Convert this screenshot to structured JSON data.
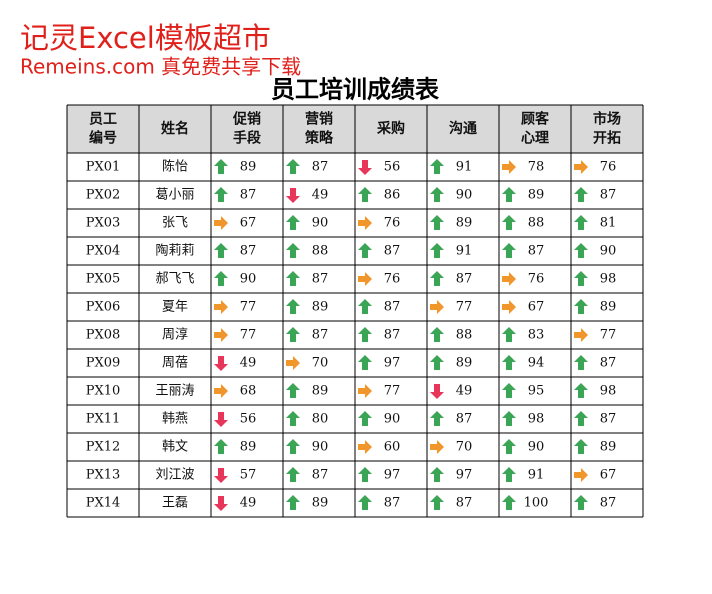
{
  "watermark": {
    "line1": "记灵Excel模板超市",
    "line2": "Remeins.com 真免费共享下载"
  },
  "table": {
    "title": "员工培训成绩表",
    "headers": [
      [
        "员工",
        "编号"
      ],
      [
        "姓名"
      ],
      [
        "促销",
        "手段"
      ],
      [
        "营销",
        "策略"
      ],
      [
        "采购"
      ],
      [
        "沟通"
      ],
      [
        "顾客",
        "心理"
      ],
      [
        "市场",
        "开拓"
      ]
    ],
    "rows": [
      [
        "PX01",
        "陈怡",
        89,
        87,
        56,
        91,
        78,
        76
      ],
      [
        "PX02",
        "葛小丽",
        87,
        49,
        86,
        90,
        89,
        87
      ],
      [
        "PX03",
        "张飞",
        67,
        90,
        76,
        89,
        88,
        81
      ],
      [
        "PX04",
        "陶莉莉",
        87,
        88,
        87,
        91,
        87,
        90
      ],
      [
        "PX05",
        "郝飞飞",
        90,
        87,
        76,
        87,
        76,
        98
      ],
      [
        "PX06",
        "夏年",
        77,
        89,
        87,
        77,
        67,
        89
      ],
      [
        "PX08",
        "周淳",
        77,
        87,
        87,
        88,
        83,
        77
      ],
      [
        "PX09",
        "周蓓",
        49,
        70,
        97,
        89,
        94,
        87
      ],
      [
        "PX10",
        "王丽涛",
        68,
        89,
        77,
        49,
        95,
        98
      ],
      [
        "PX11",
        "韩燕",
        56,
        80,
        90,
        87,
        98,
        87
      ],
      [
        "PX12",
        "韩文",
        89,
        90,
        60,
        70,
        90,
        89
      ],
      [
        "PX13",
        "刘江波",
        57,
        87,
        97,
        97,
        91,
        67
      ],
      [
        "PX14",
        "王磊",
        49,
        89,
        87,
        87,
        100,
        87
      ]
    ]
  }
}
